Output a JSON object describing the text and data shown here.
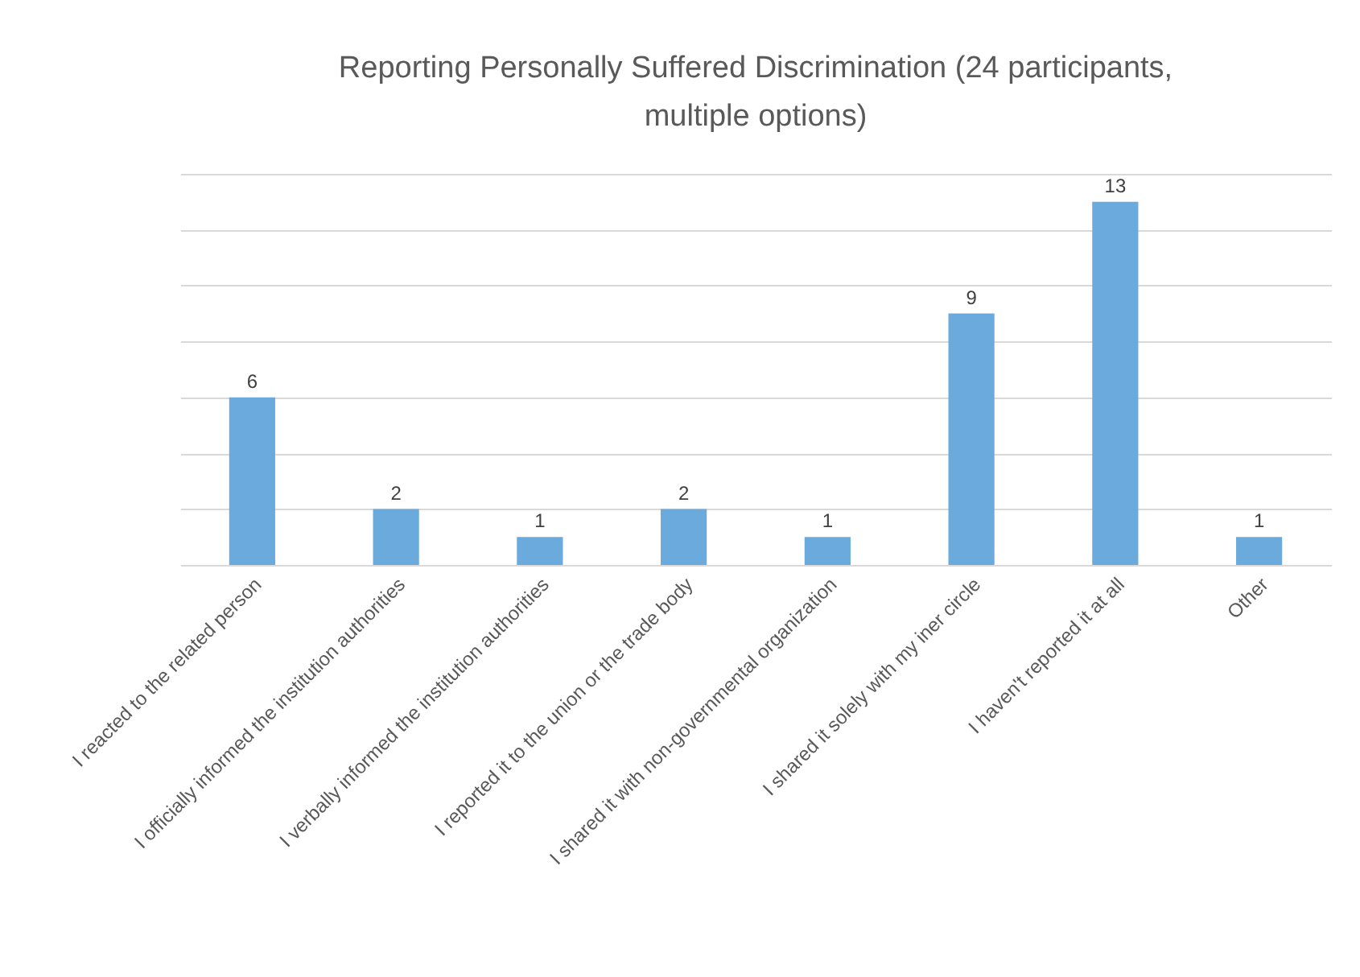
{
  "chart_data": {
    "type": "bar",
    "title": "Reporting Personally Suffered Discrimination (24 participants, multiple options)",
    "categories": [
      "I reacted to the related person",
      "I officially informed the institution authorities",
      "I verbally informed the institution authorities",
      "I reported it to the union or the trade body",
      "I shared it with non-governmental organization",
      "I shared it solely with my iner circle",
      "I haven't reported it at all",
      "Other"
    ],
    "values": [
      6,
      2,
      1,
      2,
      1,
      9,
      13,
      1
    ],
    "color": "#6aaadd",
    "grid": "y",
    "tick_labels": "x",
    "data_labels": true
  }
}
